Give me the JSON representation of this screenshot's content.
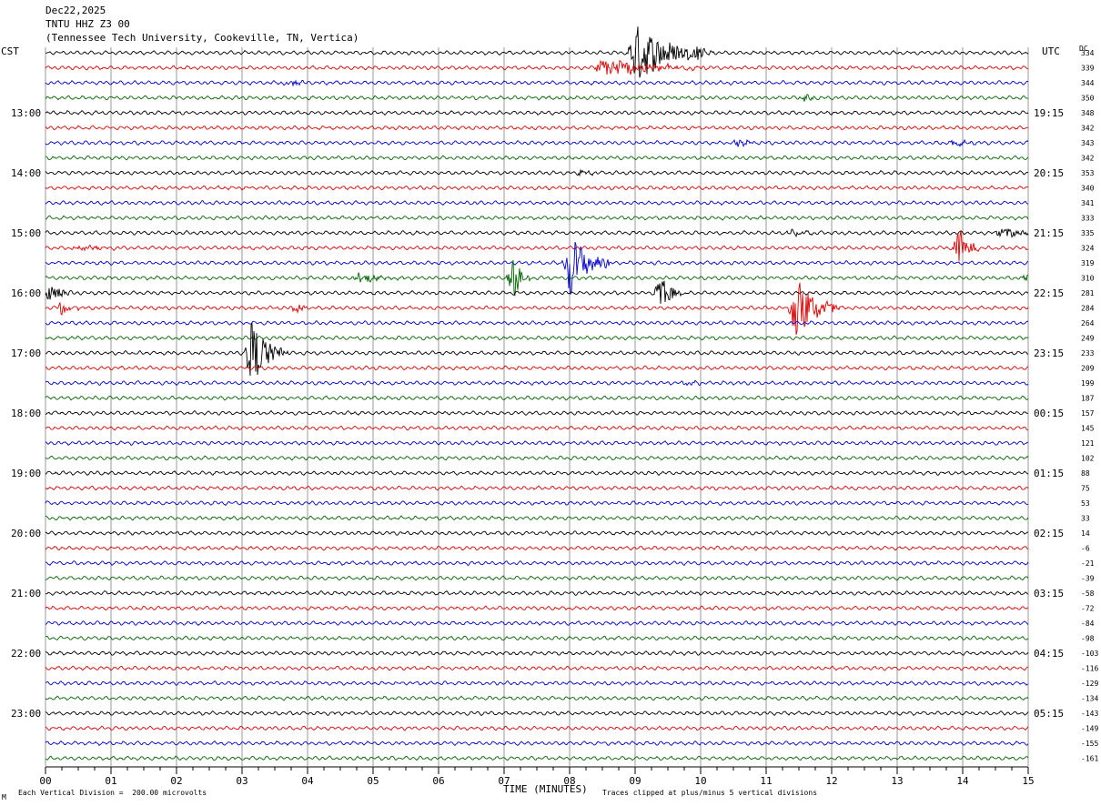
{
  "header": {
    "date": "Dec22,2025",
    "station": "TNTU HHZ Z3 00",
    "location": "(Tennessee Tech University, Cookeville, TN, Vertica)"
  },
  "left_tz": "CST",
  "right_tz": "UTC",
  "dc_label": "DC",
  "xlabel": "TIME (MINUTES)",
  "footer_left": "Each Vertical Division =  200.00 microvolts",
  "footer_right": "Traces clipped at plus/minus 5 vertical divisions",
  "corner_mark": "М",
  "colors": [
    "#000000",
    "#e00000",
    "#0000d0",
    "#006400"
  ],
  "chart_data": {
    "type": "line",
    "title": "TNTU HHZ Z3 00",
    "xlim": [
      0,
      15
    ],
    "x_ticks": [
      "00",
      "01",
      "02",
      "03",
      "04",
      "05",
      "06",
      "07",
      "08",
      "09",
      "10",
      "11",
      "12",
      "13",
      "14",
      "15"
    ],
    "left_hour_labels": [
      "13:00",
      "14:00",
      "15:00",
      "16:00",
      "17:00",
      "18:00",
      "19:00",
      "20:00",
      "21:00",
      "22:00",
      "23:00"
    ],
    "right_hour_labels": [
      "19:15",
      "20:15",
      "21:15",
      "22:15",
      "23:15",
      "00:15",
      "01:15",
      "02:15",
      "03:15",
      "04:15",
      "05:15"
    ],
    "trace_dc": [
      "334",
      "339",
      "344",
      "350",
      "348",
      "342",
      "343",
      "342",
      "353",
      "340",
      "341",
      "333",
      "335",
      "324",
      "319",
      "310",
      "281",
      "284",
      "264",
      "249",
      "233",
      "209",
      "199",
      "187",
      "157",
      "145",
      "121",
      "102",
      "88",
      "75",
      "53",
      "33",
      "14",
      "-6",
      "-21",
      "-39",
      "-58",
      "-72",
      "-84",
      "-98",
      "-103",
      "-116",
      "-129",
      "-134",
      "-143",
      "-149",
      "-155",
      "-161"
    ],
    "trace_count": 48,
    "events": [
      {
        "trace": 0,
        "minute": 9.0,
        "amplitude": 5,
        "duration": 1.1
      },
      {
        "trace": 0,
        "minute": 10.0,
        "amplitude": 1.0,
        "duration": 0.2
      },
      {
        "trace": 1,
        "minute": 8.5,
        "amplitude": 1.6,
        "duration": 1.6
      },
      {
        "trace": 2,
        "minute": 3.7,
        "amplitude": 0.6,
        "duration": 0.3
      },
      {
        "trace": 3,
        "minute": 11.6,
        "amplitude": 0.5,
        "duration": 0.3
      },
      {
        "trace": 6,
        "minute": 10.6,
        "amplitude": 0.7,
        "duration": 0.3
      },
      {
        "trace": 6,
        "minute": 13.9,
        "amplitude": 0.6,
        "duration": 0.3
      },
      {
        "trace": 8,
        "minute": 8.2,
        "amplitude": 0.5,
        "duration": 0.3
      },
      {
        "trace": 12,
        "minute": 11.4,
        "amplitude": 0.6,
        "duration": 0.4
      },
      {
        "trace": 12,
        "minute": 14.6,
        "amplitude": 0.8,
        "duration": 0.8
      },
      {
        "trace": 13,
        "minute": 13.95,
        "amplitude": 3.2,
        "duration": 0.3
      },
      {
        "trace": 13,
        "minute": 0.5,
        "amplitude": 0.6,
        "duration": 0.6
      },
      {
        "trace": 14,
        "minute": 8.0,
        "amplitude": 5,
        "duration": 0.6
      },
      {
        "trace": 15,
        "minute": 4.8,
        "amplitude": 0.9,
        "duration": 0.7
      },
      {
        "trace": 15,
        "minute": 7.15,
        "amplitude": 3.5,
        "duration": 0.25
      },
      {
        "trace": 15,
        "minute": 15.0,
        "amplitude": 0.8,
        "duration": 0.2
      },
      {
        "trace": 16,
        "minute": 0.1,
        "amplitude": 1.8,
        "duration": 0.35
      },
      {
        "trace": 16,
        "minute": 9.4,
        "amplitude": 2.6,
        "duration": 0.35
      },
      {
        "trace": 17,
        "minute": 0.25,
        "amplitude": 1.2,
        "duration": 0.3
      },
      {
        "trace": 17,
        "minute": 3.85,
        "amplitude": 0.9,
        "duration": 0.2
      },
      {
        "trace": 17,
        "minute": 11.45,
        "amplitude": 5,
        "duration": 0.7
      },
      {
        "trace": 20,
        "minute": 3.15,
        "amplitude": 5,
        "duration": 0.55
      },
      {
        "trace": 22,
        "minute": 9.8,
        "amplitude": 0.4,
        "duration": 0.3
      }
    ]
  }
}
